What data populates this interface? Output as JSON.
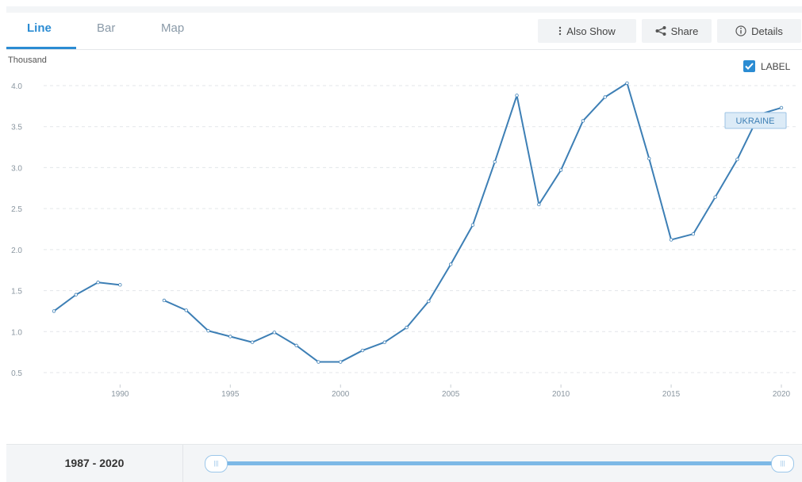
{
  "tabs": [
    {
      "label": "Line",
      "active": true
    },
    {
      "label": "Bar",
      "active": false
    },
    {
      "label": "Map",
      "active": false
    }
  ],
  "toolbar": {
    "also_show": "Also Show",
    "share": "Share",
    "details": "Details"
  },
  "icons": {
    "also_show": "vertical-ellipsis-icon",
    "share": "share-icon",
    "details": "info-icon",
    "label_checkbox": "checkbox-checked-icon"
  },
  "label_toggle": {
    "text": "LABEL",
    "checked": true
  },
  "colors": {
    "accent": "#2b8cd3",
    "series": "#3d7fb5"
  },
  "chart_data": {
    "type": "line",
    "unit_label": "Thousand",
    "ylim": [
      0.5,
      4.0
    ],
    "yticks": [
      "0.5",
      "1.0",
      "1.5",
      "2.0",
      "2.5",
      "3.0",
      "3.5",
      "4.0"
    ],
    "xlim": [
      1987,
      2020
    ],
    "xticks": [
      "1990",
      "1995",
      "2000",
      "2005",
      "2010",
      "2015",
      "2020"
    ],
    "grid": true,
    "series": [
      {
        "name": "UKRAINE",
        "x": [
          1987,
          1988,
          1989,
          1990,
          1991,
          1992,
          1993,
          1994,
          1995,
          1996,
          1997,
          1998,
          1999,
          2000,
          2001,
          2002,
          2003,
          2004,
          2005,
          2006,
          2007,
          2008,
          2009,
          2010,
          2011,
          2012,
          2013,
          2014,
          2015,
          2016,
          2017,
          2018,
          2019,
          2020
        ],
        "values": [
          1.25,
          1.45,
          1.6,
          1.57,
          null,
          1.38,
          1.26,
          1.01,
          0.94,
          0.87,
          0.99,
          0.83,
          0.63,
          0.63,
          0.77,
          0.87,
          1.05,
          1.37,
          1.82,
          2.3,
          3.07,
          3.88,
          2.55,
          2.97,
          3.57,
          3.86,
          4.03,
          3.11,
          2.12,
          2.19,
          2.64,
          3.1,
          3.65,
          3.73
        ]
      }
    ]
  },
  "range": {
    "label": "1987 - 2020"
  }
}
